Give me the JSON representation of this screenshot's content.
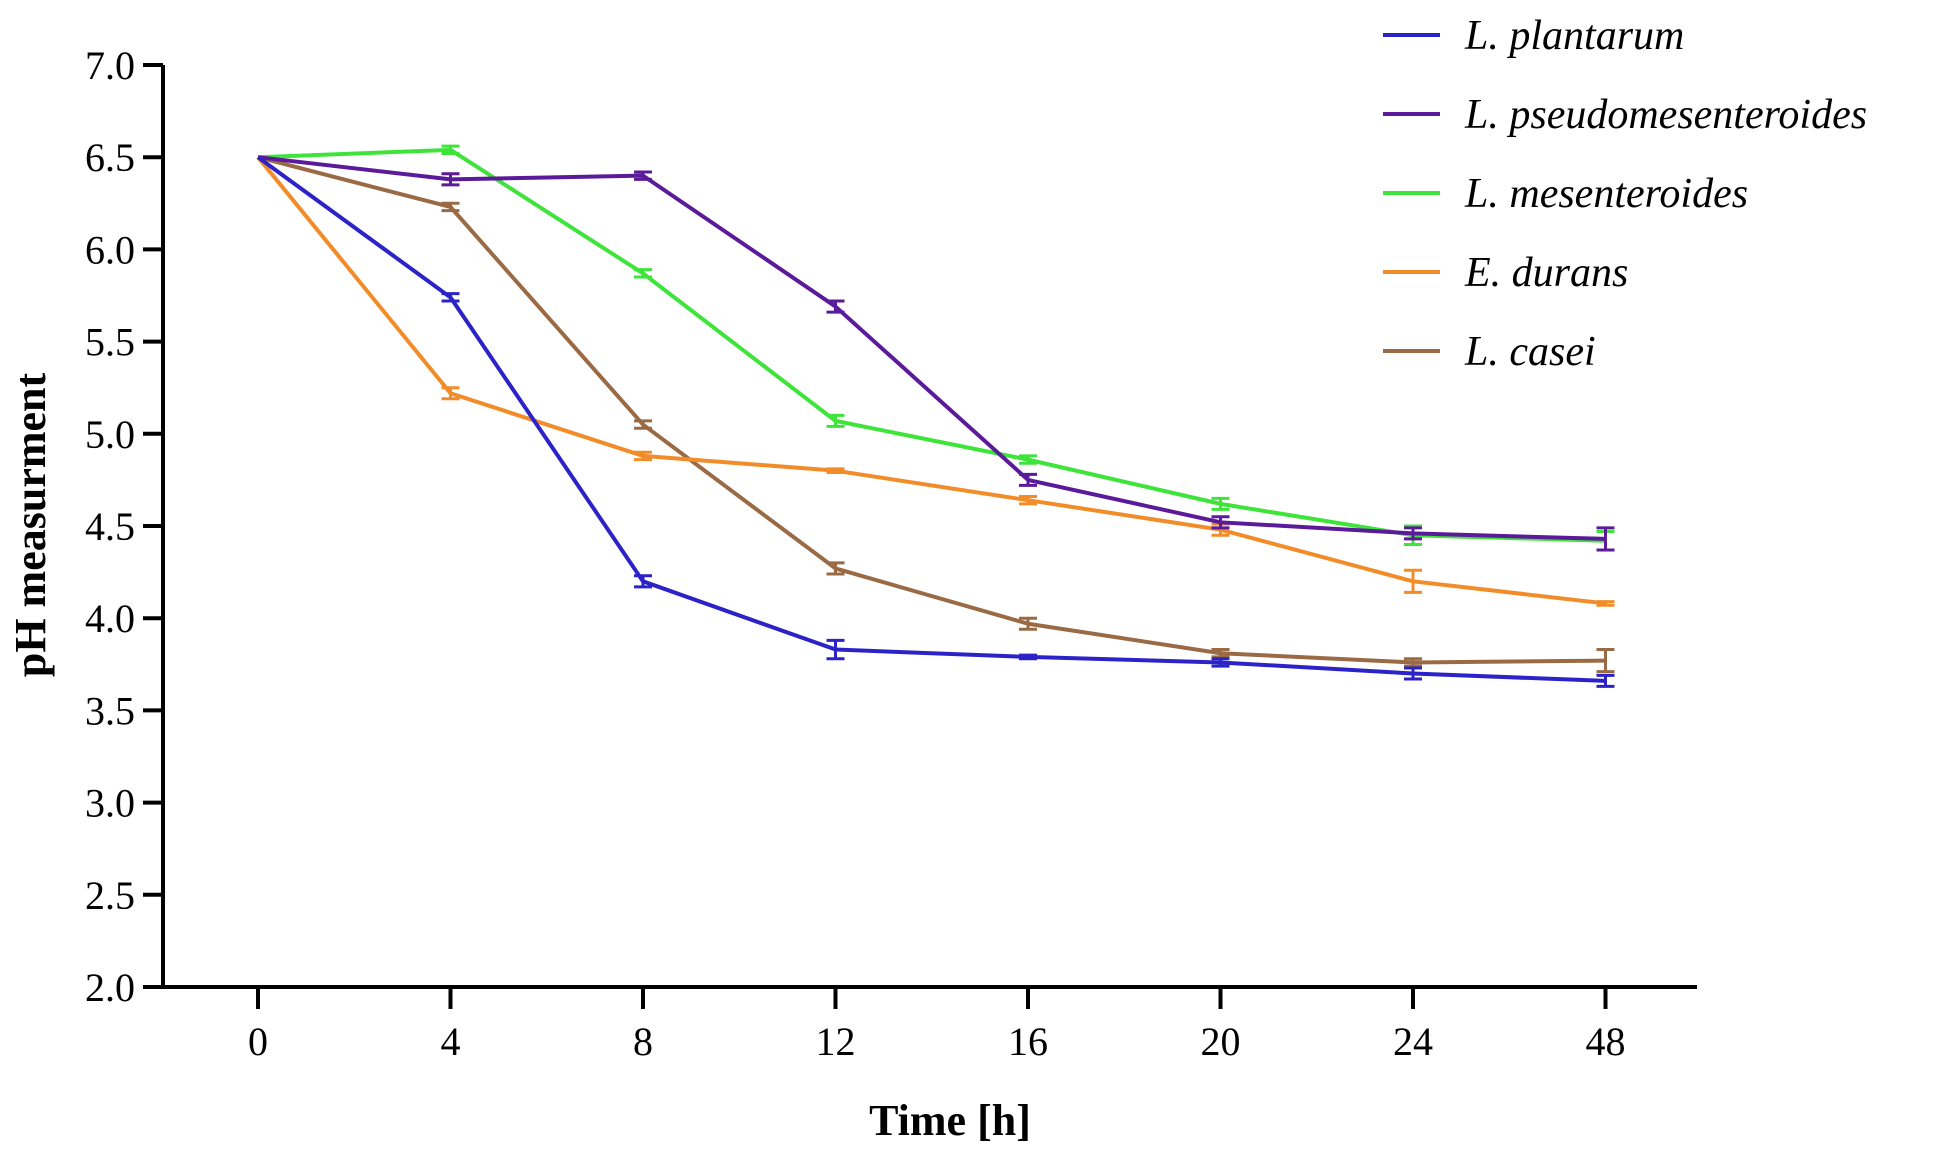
{
  "chart_data": {
    "type": "line",
    "title": "",
    "xlabel": "Time [h]",
    "ylabel": "pH measurment",
    "categories": [
      "0",
      "4",
      "8",
      "12",
      "16",
      "20",
      "24",
      "48"
    ],
    "ylim": [
      2.0,
      7.0
    ],
    "yticks": [
      "2.0",
      "2.5",
      "3.0",
      "3.5",
      "4.0",
      "4.5",
      "5.0",
      "5.5",
      "6.0",
      "6.5",
      "7.0"
    ],
    "grid": false,
    "legend_position": "top-right",
    "series": [
      {
        "name": "L. plantarum",
        "color": "#2b23c8",
        "values": [
          6.5,
          5.74,
          4.2,
          3.83,
          3.79,
          3.76,
          3.7,
          3.66
        ],
        "errors": [
          0.0,
          0.02,
          0.03,
          0.05,
          0.01,
          0.02,
          0.03,
          0.03
        ]
      },
      {
        "name": "L. pseudomesenteroides",
        "color": "#5b1a9a",
        "values": [
          6.5,
          6.38,
          6.4,
          5.69,
          4.75,
          4.52,
          4.46,
          4.43
        ],
        "errors": [
          0.0,
          0.03,
          0.02,
          0.03,
          0.03,
          0.03,
          0.03,
          0.06
        ]
      },
      {
        "name": "L. mesenteroides",
        "color": "#3ee43a",
        "values": [
          6.5,
          6.54,
          5.87,
          5.07,
          4.86,
          4.62,
          4.45,
          4.42
        ],
        "errors": [
          0.0,
          0.02,
          0.02,
          0.03,
          0.02,
          0.03,
          0.05,
          0.05
        ]
      },
      {
        "name": "E. durans",
        "color": "#f28c28",
        "values": [
          6.5,
          5.22,
          4.88,
          4.8,
          4.64,
          4.48,
          4.2,
          4.08
        ],
        "errors": [
          0.0,
          0.03,
          0.02,
          0.01,
          0.02,
          0.03,
          0.06,
          0.01
        ]
      },
      {
        "name": "L. casei",
        "color": "#9a6a44",
        "values": [
          6.5,
          6.23,
          5.05,
          4.27,
          3.97,
          3.81,
          3.76,
          3.77
        ],
        "errors": [
          0.0,
          0.02,
          0.02,
          0.03,
          0.03,
          0.02,
          0.02,
          0.06
        ]
      }
    ]
  }
}
